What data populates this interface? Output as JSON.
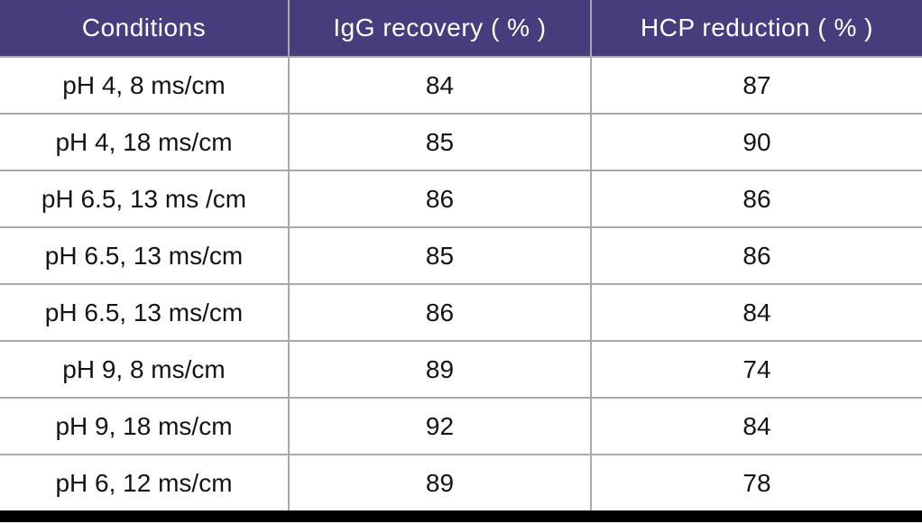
{
  "table": {
    "columns": [
      {
        "label": "Conditions"
      },
      {
        "label": "IgG recovery ( % )"
      },
      {
        "label": "HCP reduction ( % )"
      }
    ],
    "rows": [
      {
        "condition": "pH 4, 8 ms/cm",
        "igg": "84",
        "hcp": "87"
      },
      {
        "condition": "pH 4, 18 ms/cm",
        "igg": "85",
        "hcp": "90"
      },
      {
        "condition": "pH 6.5, 13 ms /cm",
        "igg": "86",
        "hcp": "86"
      },
      {
        "condition": "pH 6.5, 13 ms/cm",
        "igg": "85",
        "hcp": "86"
      },
      {
        "condition": "pH 6.5, 13 ms/cm",
        "igg": "86",
        "hcp": "84"
      },
      {
        "condition": "pH 9, 8 ms/cm",
        "igg": "89",
        "hcp": "74"
      },
      {
        "condition": "pH 9, 18 ms/cm",
        "igg": "92",
        "hcp": "84"
      },
      {
        "condition": "pH 6, 12 ms/cm",
        "igg": "89",
        "hcp": "78"
      }
    ]
  },
  "chart_data": {
    "type": "table",
    "title": "",
    "columns": [
      "Conditions",
      "IgG recovery ( % )",
      "HCP reduction ( % )"
    ],
    "categories": [
      "pH 4, 8 ms/cm",
      "pH 4, 18 ms/cm",
      "pH 6.5, 13 ms /cm",
      "pH 6.5, 13 ms/cm",
      "pH 6.5, 13 ms/cm",
      "pH 9, 8 ms/cm",
      "pH 9, 18 ms/cm",
      "pH 6, 12 ms/cm"
    ],
    "series": [
      {
        "name": "IgG recovery ( % )",
        "values": [
          84,
          85,
          86,
          85,
          86,
          89,
          92,
          89
        ]
      },
      {
        "name": "HCP reduction ( % )",
        "values": [
          87,
          90,
          86,
          86,
          84,
          74,
          84,
          78
        ]
      }
    ]
  },
  "colors": {
    "header_bg": "#463D7D",
    "header_text": "#FFFFFF",
    "grid_line": "#A9A9A9",
    "body_text": "#141414",
    "bottom_border": "#000000"
  }
}
